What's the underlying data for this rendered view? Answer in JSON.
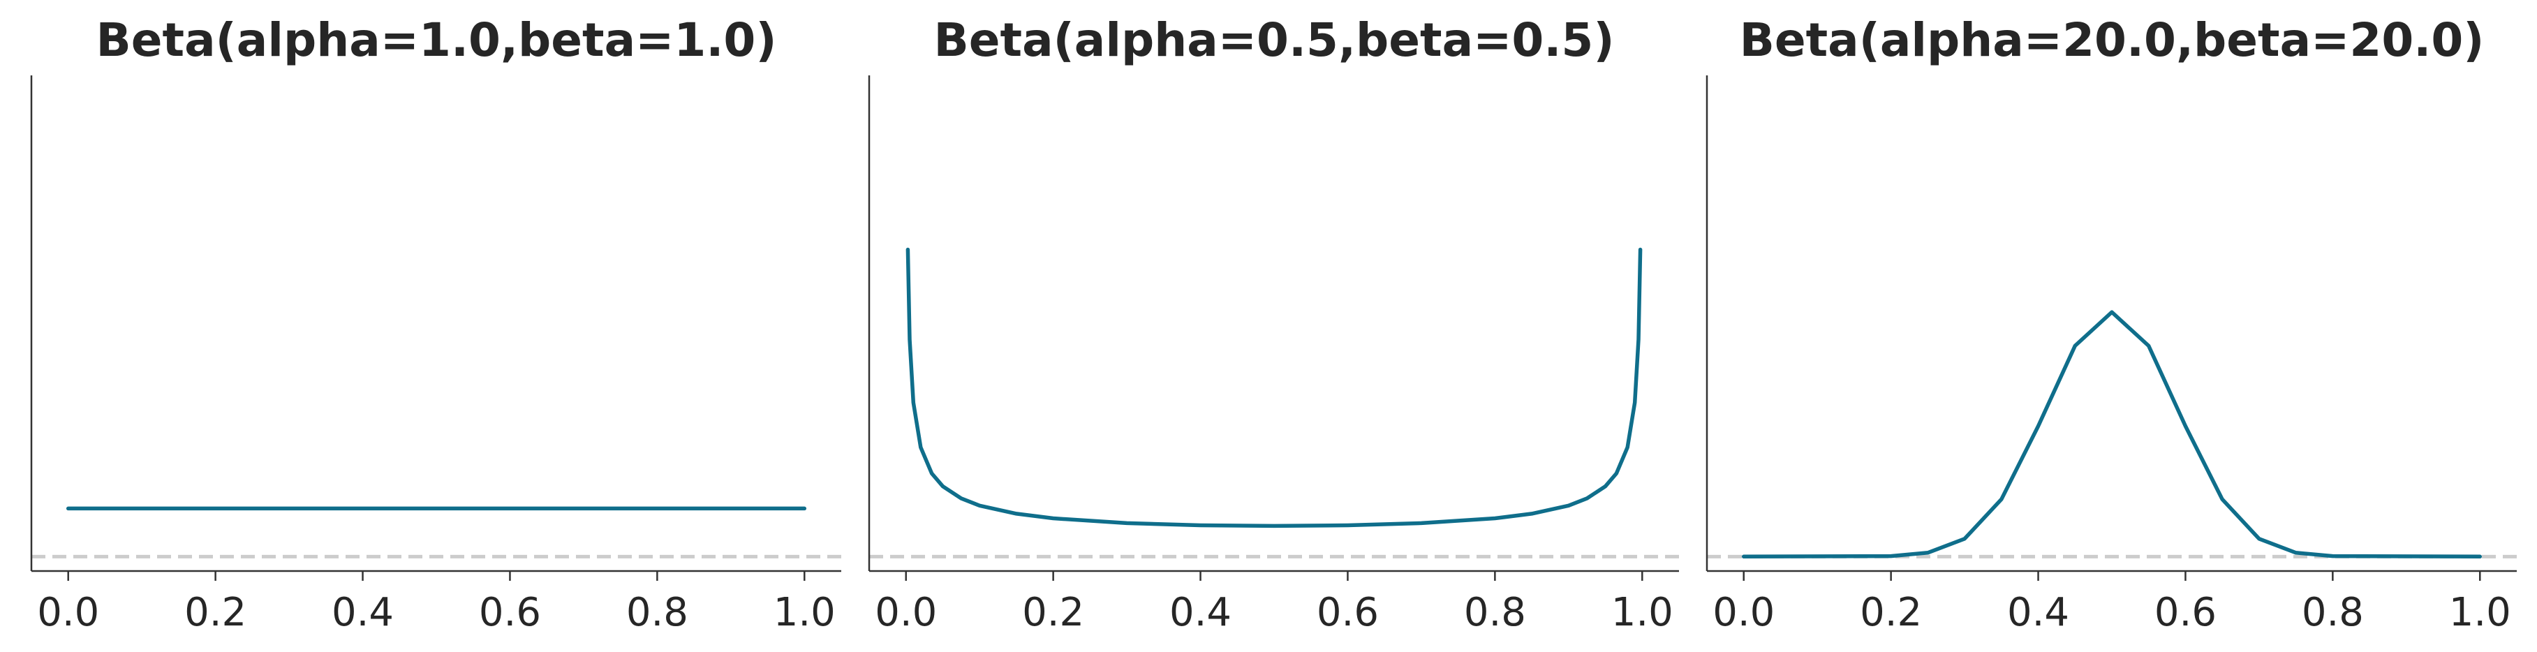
{
  "chart_data": [
    {
      "type": "line",
      "title": "Beta(alpha=1.0,beta=1.0)",
      "alpha": 1.0,
      "beta": 1.0,
      "xlim": [
        -0.05,
        1.05
      ],
      "xticks": [
        0.0,
        0.2,
        0.4,
        0.6,
        0.8,
        1.0
      ],
      "xtick_labels": [
        "0.0",
        "0.2",
        "0.4",
        "0.6",
        "0.8",
        "1.0"
      ],
      "ylim": [
        -0.3,
        10.0
      ],
      "y_visible": false,
      "x": [
        0.0,
        0.1,
        0.2,
        0.3,
        0.4,
        0.5,
        0.6,
        0.7,
        0.8,
        0.9,
        1.0
      ],
      "y": [
        1.0,
        1.0,
        1.0,
        1.0,
        1.0,
        1.0,
        1.0,
        1.0,
        1.0,
        1.0,
        1.0
      ],
      "baseline": 0,
      "line_color": "#0f6e8b",
      "baseline_color": "#cccccc"
    },
    {
      "type": "line",
      "title": "Beta(alpha=0.5,beta=0.5)",
      "alpha": 0.5,
      "beta": 0.5,
      "xlim": [
        -0.05,
        1.05
      ],
      "xticks": [
        0.0,
        0.2,
        0.4,
        0.6,
        0.8,
        1.0
      ],
      "xtick_labels": [
        "0.0",
        "0.2",
        "0.4",
        "0.6",
        "0.8",
        "1.0"
      ],
      "ylim": [
        -0.3,
        10.0
      ],
      "y_visible": false,
      "x": [
        0.0025,
        0.005,
        0.01,
        0.02,
        0.035,
        0.05,
        0.075,
        0.1,
        0.15,
        0.2,
        0.3,
        0.4,
        0.5,
        0.6,
        0.7,
        0.8,
        0.85,
        0.9,
        0.925,
        0.95,
        0.965,
        0.98,
        0.99,
        0.995,
        0.9975
      ],
      "y": [
        6.38,
        4.51,
        3.2,
        2.27,
        1.73,
        1.46,
        1.21,
        1.06,
        0.891,
        0.796,
        0.695,
        0.65,
        0.637,
        0.65,
        0.695,
        0.796,
        0.891,
        1.06,
        1.21,
        1.46,
        1.73,
        2.27,
        3.2,
        4.51,
        6.38
      ],
      "baseline": 0,
      "line_color": "#0f6e8b",
      "baseline_color": "#cccccc"
    },
    {
      "type": "line",
      "title": "Beta(alpha=20.0,beta=20.0)",
      "alpha": 20.0,
      "beta": 20.0,
      "xlim": [
        -0.05,
        1.05
      ],
      "xticks": [
        0.0,
        0.2,
        0.4,
        0.6,
        0.8,
        1.0
      ],
      "xtick_labels": [
        "0.0",
        "0.2",
        "0.4",
        "0.6",
        "0.8",
        "1.0"
      ],
      "ylim": [
        -0.3,
        10.0
      ],
      "y_visible": false,
      "x": [
        0.0,
        0.2,
        0.25,
        0.3,
        0.35,
        0.4,
        0.45,
        0.5,
        0.55,
        0.6,
        0.65,
        0.7,
        0.75,
        0.8,
        1.0
      ],
      "y": [
        0.0,
        0.01,
        0.08,
        0.37,
        1.19,
        2.71,
        4.38,
        5.08,
        4.38,
        2.71,
        1.19,
        0.37,
        0.08,
        0.01,
        0.0
      ],
      "baseline": 0,
      "line_color": "#0f6e8b",
      "baseline_color": "#cccccc"
    }
  ]
}
